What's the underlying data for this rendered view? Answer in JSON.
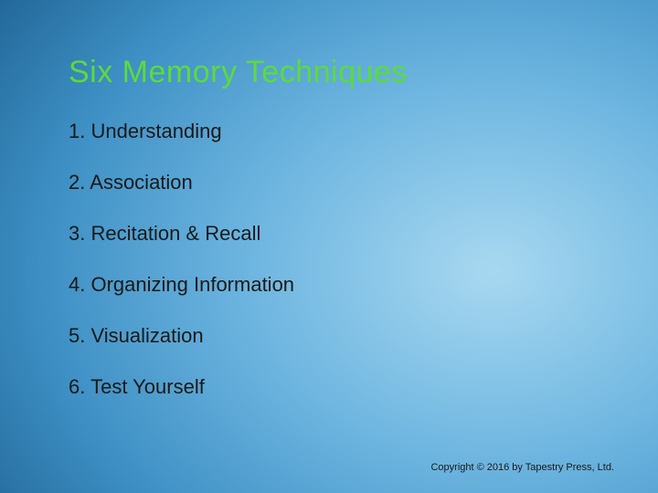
{
  "slide": {
    "title": "Six Memory Techniques",
    "title_color": "#5bdb3c",
    "title_fontsize": 34,
    "background_gradient": {
      "type": "radial",
      "center": "75% 55%",
      "stops": [
        "#a8d8f0",
        "#6db5e0",
        "#3d8fc4",
        "#1a5a8a",
        "#0a3050"
      ]
    },
    "items": [
      {
        "number": "1.",
        "text": "Understanding"
      },
      {
        "number": "2.",
        "text": "Association"
      },
      {
        "number": "3.",
        "text": "Recitation & Recall"
      },
      {
        "number": "4.",
        "text": "Organizing Information"
      },
      {
        "number": "5.",
        "text": "Visualization"
      },
      {
        "number": "6.",
        "text": "Test Yourself"
      }
    ],
    "item_fontsize": 22,
    "item_color": "#1a1a1a",
    "copyright": "Copyright © 2016 by Tapestry Press, Ltd.",
    "copyright_fontsize": 11
  }
}
